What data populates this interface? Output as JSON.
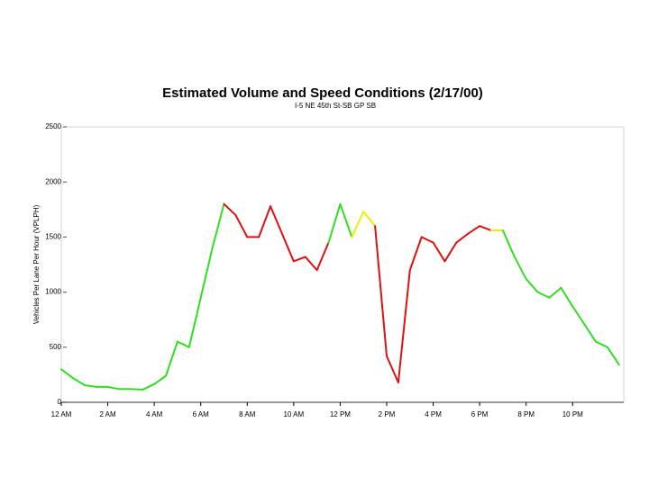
{
  "chart_data": {
    "type": "line",
    "title": "Estimated Volume and Speed Conditions (2/17/00)",
    "subtitle": "I-5 NE 45th St-SB GP SB",
    "y_label": "Vehicles Per Lane Per Hour (VPLPH)",
    "x": [
      0,
      0.5,
      1,
      1.5,
      2,
      2.5,
      3,
      3.5,
      4,
      4.5,
      5,
      5.5,
      6,
      6.5,
      7,
      7.5,
      8,
      8.5,
      9,
      9.5,
      10,
      10.5,
      11,
      11.5,
      12,
      12.5,
      13,
      13.5,
      14,
      14.5,
      15,
      15.5,
      16,
      16.5,
      17,
      17.5,
      18,
      18.5,
      19,
      19.5,
      20,
      20.5,
      21,
      21.5,
      22,
      22.5,
      23,
      23.5,
      24
    ],
    "series": [
      {
        "values": [
          300,
          220,
          155,
          140,
          140,
          120,
          120,
          115,
          165,
          240,
          550,
          500,
          950,
          1400,
          1800,
          1700,
          1500,
          1500,
          1780,
          1530,
          1280,
          1320,
          1200,
          1450,
          1800,
          1500,
          1730,
          1600,
          420,
          180,
          1200,
          1500,
          1450,
          1280,
          1450,
          1530,
          1600,
          1560,
          1560,
          1320,
          1120,
          1000,
          950,
          1040,
          870,
          710,
          550,
          500,
          340
        ],
        "colors": [
          "#33dd22",
          "#33dd22",
          "#33dd22",
          "#33dd22",
          "#33dd22",
          "#33dd22",
          "#33dd22",
          "#33dd22",
          "#33dd22",
          "#33dd22",
          "#33dd22",
          "#33dd22",
          "#33dd22",
          "#33dd22",
          "#dd1111",
          "#dd1111",
          "#dd1111",
          "#dd1111",
          "#dd1111",
          "#dd1111",
          "#dd1111",
          "#dd1111",
          "#dd1111",
          "#33dd22",
          "#33dd22",
          "#eeee00",
          "#eeee00",
          "#dd1111",
          "#dd1111",
          "#dd1111",
          "#dd1111",
          "#dd1111",
          "#dd1111",
          "#dd1111",
          "#dd1111",
          "#dd1111",
          "#dd1111",
          "#eeee00",
          "#33dd22",
          "#33dd22",
          "#33dd22",
          "#33dd22",
          "#33dd22",
          "#33dd22",
          "#33dd22",
          "#33dd22",
          "#33dd22",
          "#33dd22",
          "#33dd22"
        ]
      }
    ],
    "xlim": [
      0,
      24.2
    ],
    "xticks": [
      {
        "value": 0,
        "label": "12 AM"
      },
      {
        "value": 2,
        "label": "2 AM"
      },
      {
        "value": 4,
        "label": "4 AM"
      },
      {
        "value": 6,
        "label": "6 AM"
      },
      {
        "value": 8,
        "label": "8 AM"
      },
      {
        "value": 10,
        "label": "10 AM"
      },
      {
        "value": 12,
        "label": "12 PM"
      },
      {
        "value": 14,
        "label": "2 PM"
      },
      {
        "value": 16,
        "label": "4 PM"
      },
      {
        "value": 18,
        "label": "6 PM"
      },
      {
        "value": 20,
        "label": "8 PM"
      },
      {
        "value": 22,
        "label": "10 PM"
      }
    ],
    "ylim": [
      0,
      2500
    ],
    "yticks": [
      0,
      500,
      1000,
      1500,
      2000,
      2500
    ]
  }
}
